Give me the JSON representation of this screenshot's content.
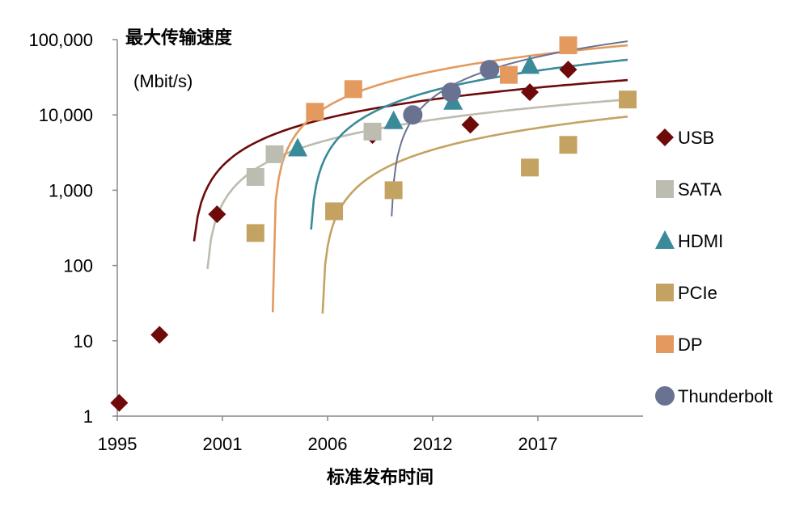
{
  "chart_data": {
    "type": "scatter",
    "title": "",
    "ylabel": "最大传输速度",
    "ylabel_unit": "(Mbit/s)",
    "xlabel": "标准发布时间",
    "yscale": "log",
    "ylim": [
      1,
      100000
    ],
    "xlim": [
      1995,
      2022.4
    ],
    "yticks": [
      {
        "value": 1,
        "label": "1"
      },
      {
        "value": 10,
        "label": "10"
      },
      {
        "value": 100,
        "label": "100"
      },
      {
        "value": 1000,
        "label": "1,000"
      },
      {
        "value": 10000,
        "label": "10,000"
      },
      {
        "value": 100000,
        "label": "100,000"
      }
    ],
    "xticks": [
      "1995",
      "2001",
      "2006",
      "2012",
      "2017"
    ],
    "grid": false,
    "legend_position": "right",
    "series": [
      {
        "name": "USB",
        "marker": "diamond",
        "color": "#6e0a0a",
        "points": [
          [
            1995.1,
            1.5
          ],
          [
            1997.2,
            12
          ],
          [
            2000.2,
            480
          ],
          [
            2008.3,
            5400
          ],
          [
            2013.4,
            7400
          ],
          [
            2016.5,
            20000
          ],
          [
            2018.5,
            40000
          ]
        ],
        "trendline": {
          "type": "linear",
          "from": [
            1999.0,
            210
          ],
          "to": [
            2021.6,
            29000
          ]
        }
      },
      {
        "name": "SATA",
        "marker": "square",
        "color": "#bcbcb0",
        "points": [
          [
            2002.2,
            1500
          ],
          [
            2003.2,
            3000
          ],
          [
            2008.3,
            6000
          ]
        ],
        "trendline": {
          "type": "linear",
          "from": [
            1999.7,
            90
          ],
          "to": [
            2021.6,
            16000
          ]
        }
      },
      {
        "name": "HDMI",
        "marker": "triangle",
        "color": "#3a8a9a",
        "points": [
          [
            2004.4,
            3600
          ],
          [
            2009.4,
            8300
          ],
          [
            2012.5,
            15000
          ],
          [
            2016.5,
            45000
          ]
        ],
        "trendline": {
          "type": "linear",
          "from": [
            2005.1,
            300
          ],
          "to": [
            2021.6,
            54000
          ]
        }
      },
      {
        "name": "PCIe",
        "marker": "square",
        "color": "#c4a362",
        "points": [
          [
            2002.2,
            270
          ],
          [
            2006.3,
            525
          ],
          [
            2009.4,
            1000
          ],
          [
            2016.5,
            2000
          ],
          [
            2018.5,
            4000
          ],
          [
            2021.6,
            16000
          ]
        ],
        "trendline": {
          "type": "linear",
          "from": [
            2005.7,
            23
          ],
          "to": [
            2021.6,
            9500
          ]
        }
      },
      {
        "name": "DP",
        "marker": "square",
        "color": "#e49a5e",
        "points": [
          [
            2005.3,
            11000
          ],
          [
            2007.3,
            22000
          ],
          [
            2015.4,
            34000
          ],
          [
            2018.5,
            84000
          ]
        ],
        "trendline": {
          "type": "linear",
          "from": [
            2003.1,
            24
          ],
          "to": [
            2021.6,
            84000
          ]
        }
      },
      {
        "name": "Thunderbolt",
        "marker": "circle",
        "color": "#6a7292",
        "points": [
          [
            2010.4,
            10000
          ],
          [
            2012.4,
            20000
          ],
          [
            2014.4,
            40000
          ]
        ],
        "trendline": {
          "type": "linear",
          "from": [
            2009.3,
            450
          ],
          "to": [
            2021.6,
            95000
          ]
        }
      }
    ]
  }
}
